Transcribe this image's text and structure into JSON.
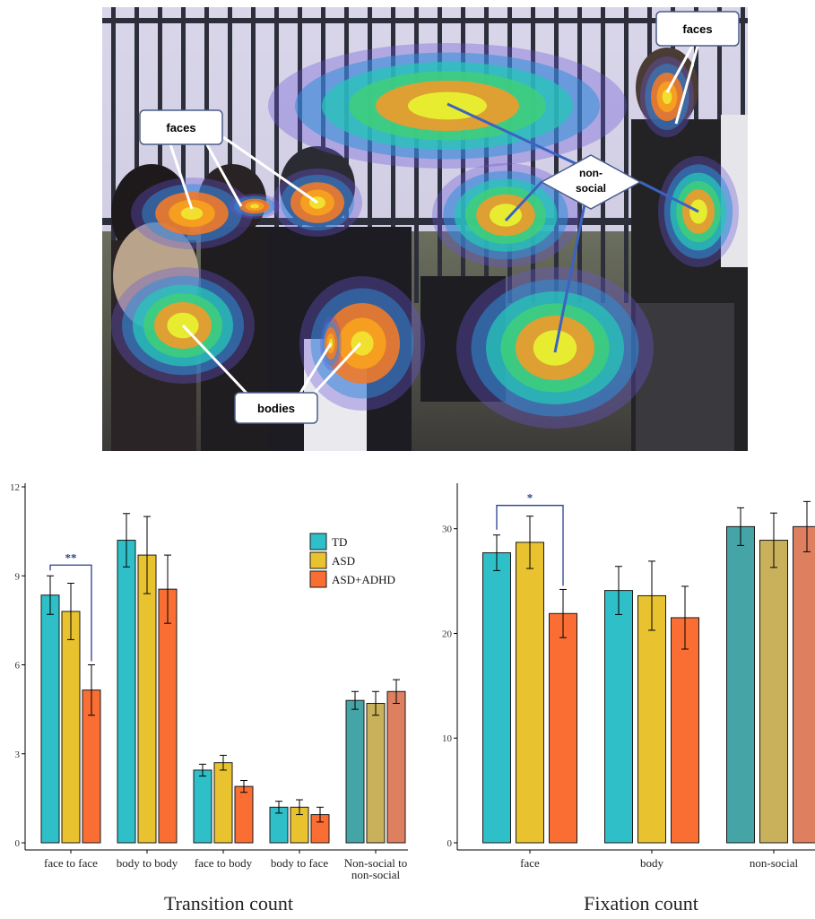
{
  "photo": {
    "callouts": {
      "faces_left": "faces",
      "faces_right": "faces",
      "nonsocial_line1": "non-",
      "nonsocial_line2": "social",
      "bodies": "bodies"
    }
  },
  "chart_data": [
    {
      "type": "bar",
      "title": "Transition count",
      "xlabel": "",
      "ylabel": "",
      "ylim": [
        0,
        12
      ],
      "yticks": [
        0,
        3,
        6,
        9,
        12
      ],
      "categories": [
        "face to face",
        "body to body",
        "face to body",
        "body to face",
        "Non-social to non-social"
      ],
      "category_label_lines": [
        [
          "face to face"
        ],
        [
          "body to body"
        ],
        [
          "face to body"
        ],
        [
          "body to face"
        ],
        [
          "Non-social to",
          "non-social"
        ]
      ],
      "series": [
        {
          "name": "TD",
          "color": "#2ebfc9",
          "values": [
            8.35,
            10.2,
            2.45,
            1.2,
            4.8
          ],
          "err": [
            0.65,
            0.9,
            0.2,
            0.2,
            0.3
          ]
        },
        {
          "name": "ASD",
          "color": "#e9c32f",
          "values": [
            7.8,
            9.7,
            2.7,
            1.2,
            4.7
          ],
          "err": [
            0.95,
            1.3,
            0.25,
            0.25,
            0.4
          ]
        },
        {
          "name": "ASD+ADHD",
          "color": "#fa6e33",
          "values": [
            5.15,
            8.55,
            1.9,
            0.95,
            5.1
          ],
          "err": [
            0.85,
            1.15,
            0.2,
            0.25,
            0.4
          ]
        }
      ],
      "last_group_colors": [
        "#44a4a6",
        "#c8b15a",
        "#de8060"
      ],
      "legend": {
        "position": "top-right",
        "entries": [
          "TD",
          "ASD",
          "ASD+ADHD"
        ]
      },
      "grid": false,
      "significance": {
        "label": "**",
        "category": 0,
        "from_series": 0,
        "to_series": 2
      }
    },
    {
      "type": "bar",
      "title": "Fixation count",
      "xlabel": "",
      "ylabel": "",
      "ylim": [
        0,
        34
      ],
      "yticks": [
        0,
        10,
        20,
        30
      ],
      "categories": [
        "face",
        "body",
        "non-social"
      ],
      "series": [
        {
          "name": "TD",
          "color": "#2ebfc9",
          "values": [
            27.7,
            24.1,
            30.2
          ],
          "err": [
            1.7,
            2.3,
            1.8
          ]
        },
        {
          "name": "ASD",
          "color": "#e9c32f",
          "values": [
            28.7,
            23.6,
            28.9
          ],
          "err": [
            2.5,
            3.3,
            2.6
          ]
        },
        {
          "name": "ASD+ADHD",
          "color": "#fa6e33",
          "values": [
            21.9,
            21.5,
            30.2
          ],
          "err": [
            2.3,
            3.0,
            2.4
          ]
        }
      ],
      "last_group_colors": [
        "#44a4a6",
        "#c8b15a",
        "#de8060"
      ],
      "grid": false,
      "significance": {
        "label": "*",
        "category": 0,
        "from_series": 0,
        "to_series": 2
      }
    }
  ]
}
